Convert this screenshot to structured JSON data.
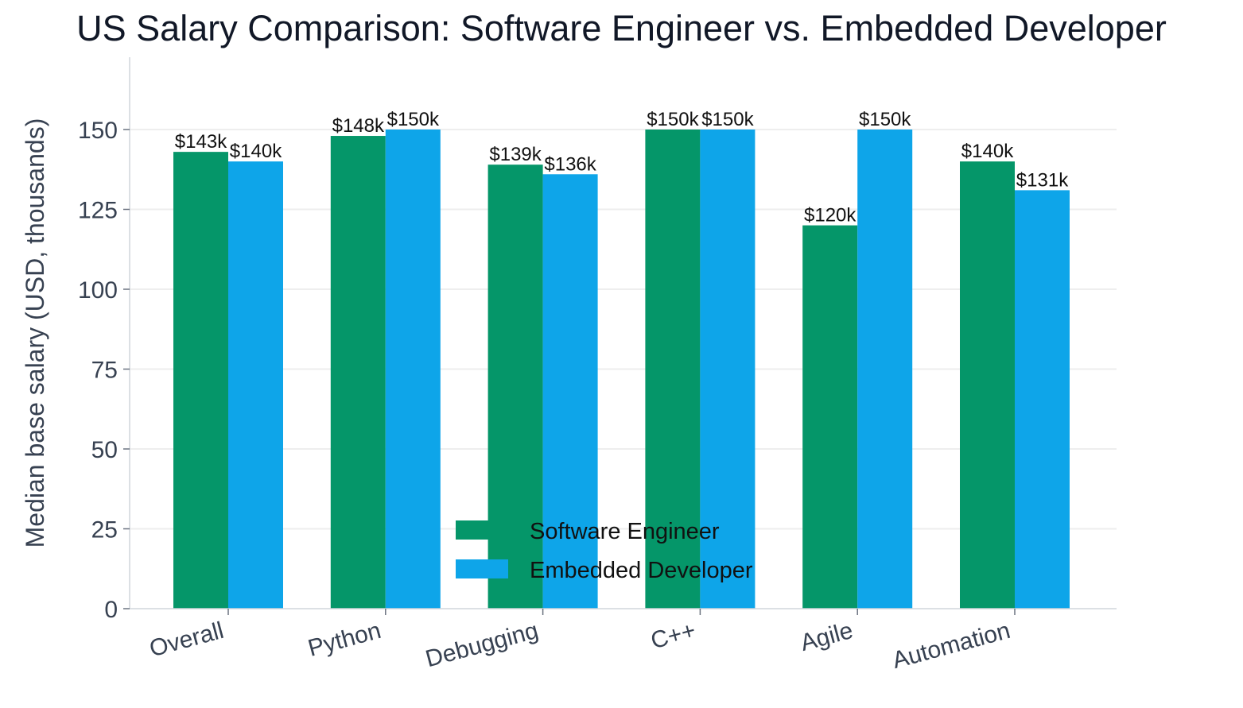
{
  "chart_data": {
    "type": "bar",
    "title": "US Salary Comparison: Software Engineer vs. Embedded Developer",
    "xlabel": "",
    "ylabel": "Median base salary (USD, thousands)",
    "categories": [
      "Overall",
      "Python",
      "Debugging",
      "C++",
      "Agile",
      "Automation"
    ],
    "series": [
      {
        "name": "Software Engineer",
        "color": "#059669",
        "values": [
          143,
          148,
          139,
          150,
          120,
          140
        ],
        "labels": [
          "$143k",
          "$148k",
          "$139k",
          "$150k",
          "$120k",
          "$140k"
        ]
      },
      {
        "name": "Embedded Developer",
        "color": "#0ea5e9",
        "values": [
          140,
          150,
          136,
          150,
          150,
          131
        ],
        "labels": [
          "$140k",
          "$150k",
          "$136k",
          "$150k",
          "$150k",
          "$131k"
        ]
      }
    ],
    "ylim": [
      0,
      175
    ],
    "yticks": [
      0,
      25,
      50,
      75,
      100,
      125,
      150
    ],
    "grid": "horizontal",
    "legend_position": "lower-center",
    "x_tick_rotation": "tilted"
  }
}
